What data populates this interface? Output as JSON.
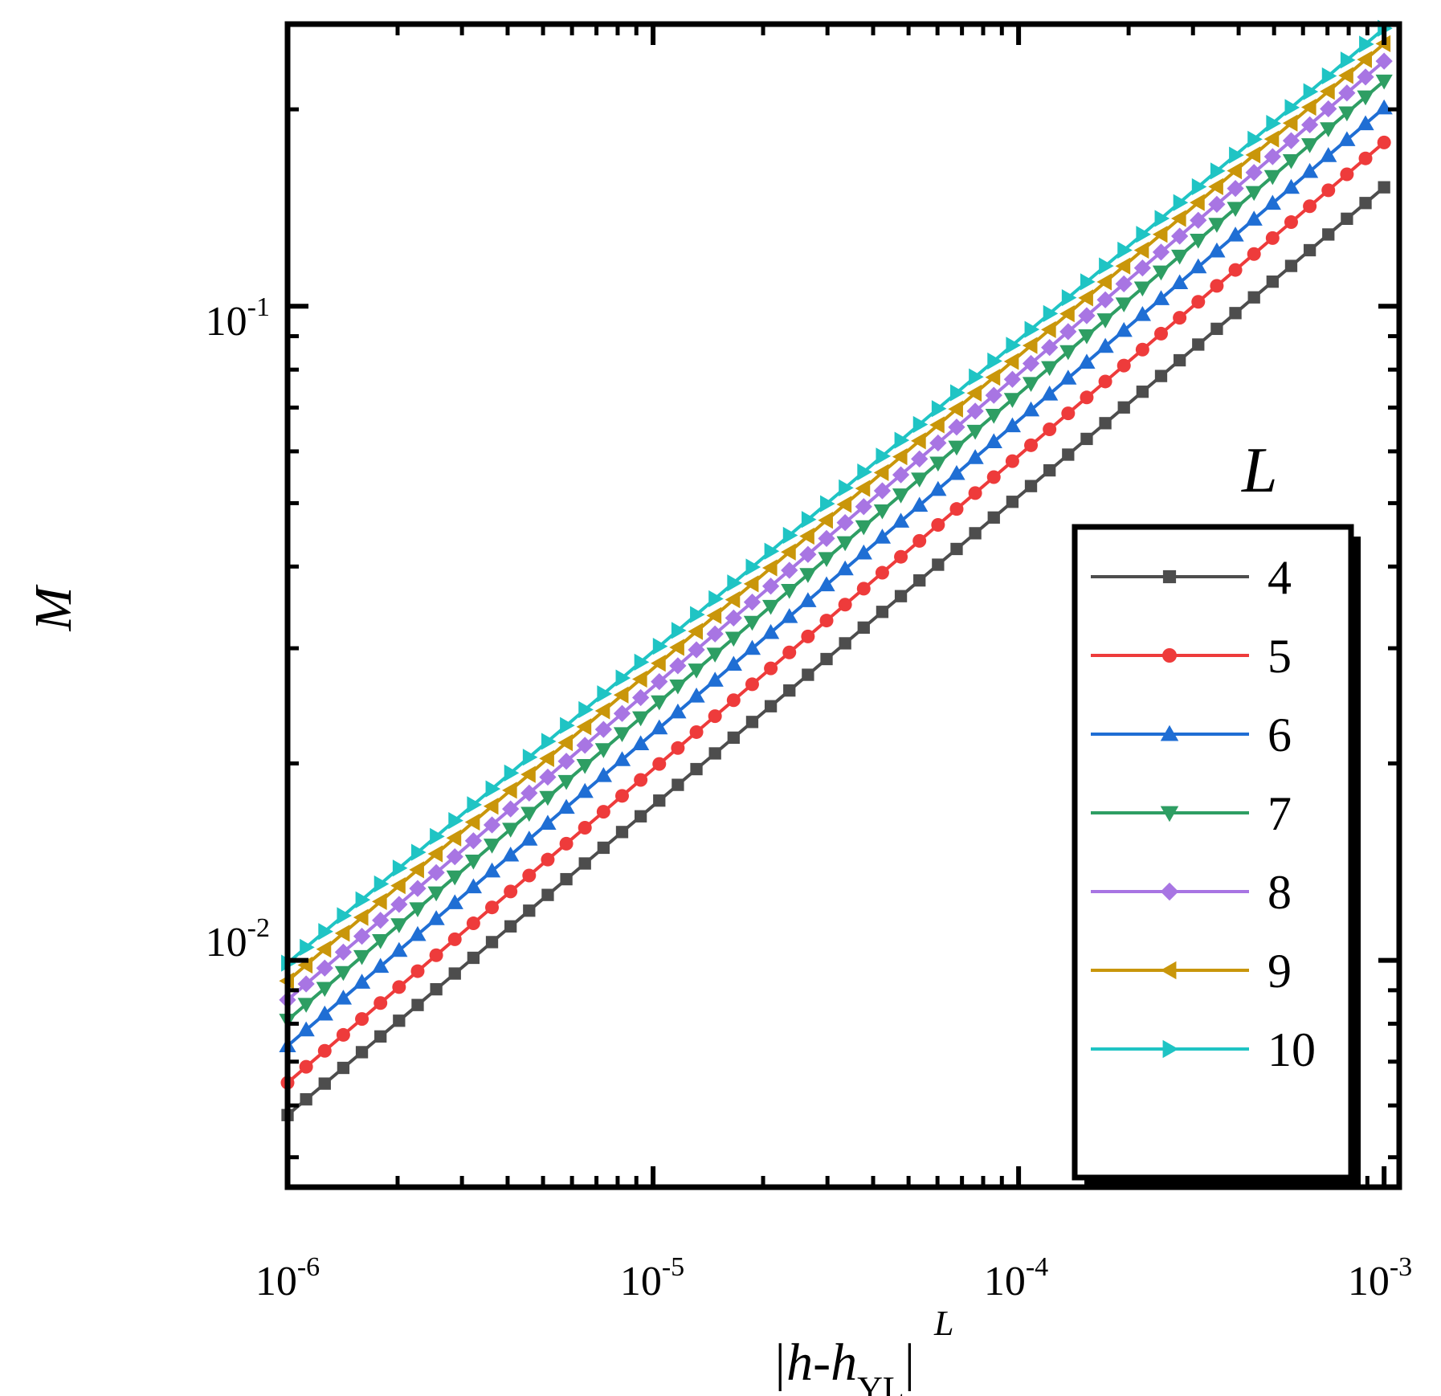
{
  "chart_data": {
    "type": "line",
    "scale": {
      "x": "log",
      "y": "log"
    },
    "xlim": [
      1e-06,
      0.0011
    ],
    "ylim": [
      0.0045,
      0.27
    ],
    "xlabel": {
      "base": "|h-h",
      "sup": "L",
      "sub": "YL",
      "close": "|"
    },
    "ylabel": "M",
    "x_ticks": [
      {
        "value": 1e-06,
        "base": "10",
        "exp": "-6"
      },
      {
        "value": 1e-05,
        "base": "10",
        "exp": "-5"
      },
      {
        "value": 0.0001,
        "base": "10",
        "exp": "-4"
      },
      {
        "value": 0.001,
        "base": "10",
        "exp": "-3"
      }
    ],
    "y_ticks": [
      {
        "value": 0.01,
        "base": "10",
        "exp": "-2"
      },
      {
        "value": 0.1,
        "base": "10",
        "exp": "-1"
      }
    ],
    "legend_title": "L",
    "legend_position": "right",
    "points_per_series": 60,
    "series": [
      {
        "name": "4",
        "color": "#4d4d4d",
        "marker": "square",
        "y_start": 0.0058,
        "y_end": 0.152
      },
      {
        "name": "5",
        "color": "#ee3b3b",
        "marker": "circle",
        "y_start": 0.0065,
        "y_end": 0.178
      },
      {
        "name": "6",
        "color": "#1f6ed4",
        "marker": "triangle-up",
        "y_start": 0.0074,
        "y_end": 0.201
      },
      {
        "name": "7",
        "color": "#2e9e63",
        "marker": "triangle-down",
        "y_start": 0.0081,
        "y_end": 0.221
      },
      {
        "name": "8",
        "color": "#a875e3",
        "marker": "diamond",
        "y_start": 0.0087,
        "y_end": 0.237
      },
      {
        "name": "9",
        "color": "#c9960a",
        "marker": "triangle-left",
        "y_start": 0.0093,
        "y_end": 0.252
      },
      {
        "name": "10",
        "color": "#1fc4c4",
        "marker": "triangle-right",
        "y_start": 0.0099,
        "y_end": 0.266
      }
    ]
  }
}
